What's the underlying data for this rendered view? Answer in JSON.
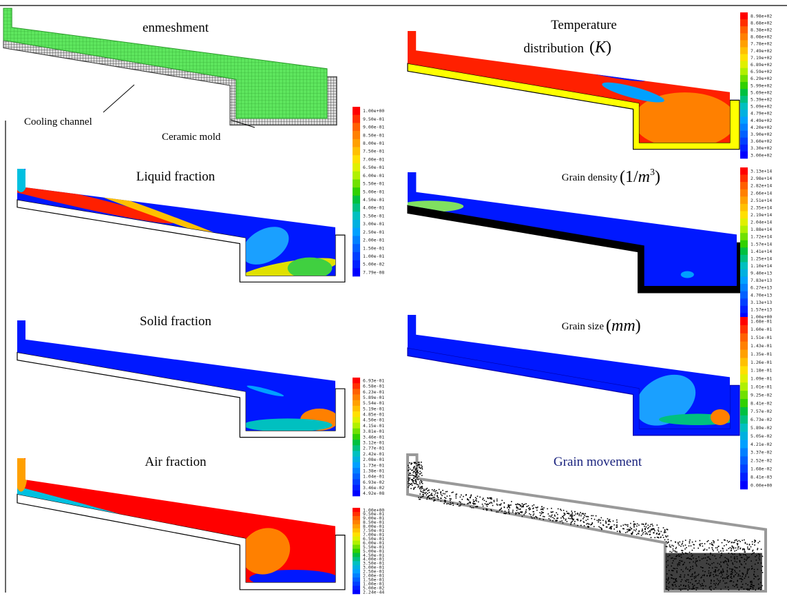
{
  "top": {
    "title": "enmeshment",
    "labels": [
      "Cooling channel",
      "Ceramic mold"
    ]
  },
  "panels": [
    {
      "title": "Liquid fraction",
      "colorbar": [
        "1.00e+00",
        "9.50e-01",
        "9.00e-01",
        "8.50e-01",
        "8.00e-01",
        "7.50e-01",
        "7.00e-01",
        "6.50e-01",
        "6.00e-01",
        "5.50e-01",
        "5.00e-01",
        "4.50e-01",
        "4.00e-01",
        "3.50e-01",
        "3.00e-01",
        "2.50e-01",
        "2.00e-01",
        "1.50e-01",
        "1.00e-01",
        "5.00e-02",
        "7.79e-08"
      ]
    },
    {
      "title": "Solid fraction",
      "colorbar": [
        "6.93e-01",
        "6.58e-01",
        "6.23e-01",
        "5.89e-01",
        "5.54e-01",
        "5.19e-01",
        "4.85e-01",
        "4.50e-01",
        "4.15e-01",
        "3.81e-01",
        "3.46e-01",
        "3.12e-01",
        "2.77e-01",
        "2.42e-01",
        "2.08e-01",
        "1.73e-01",
        "1.38e-01",
        "1.04e-01",
        "6.93e-02",
        "3.46e-02",
        "4.92e-08"
      ]
    },
    {
      "title": "Air fraction",
      "colorbar": [
        "1.00e+00",
        "9.50e-01",
        "9.00e-01",
        "8.50e-01",
        "8.00e-01",
        "7.50e-01",
        "7.00e-01",
        "6.50e-01",
        "6.00e-01",
        "5.50e-01",
        "5.00e-01",
        "4.50e-01",
        "4.00e-01",
        "3.50e-01",
        "3.00e-01",
        "2.50e-01",
        "2.00e-01",
        "1.50e-01",
        "1.00e-01",
        "5.00e-02",
        "2.24e-44"
      ]
    },
    {
      "title": [
        "Temperature",
        "distribution"
      ],
      "unit": [
        "(",
        "K",
        ")"
      ],
      "colorbar": [
        "8.98e+02",
        "8.68e+02",
        "8.38e+02",
        "8.08e+02",
        "7.78e+02",
        "7.49e+02",
        "7.19e+02",
        "6.89e+02",
        "6.59e+02",
        "6.29e+02",
        "5.99e+02",
        "5.69e+02",
        "5.39e+02",
        "5.09e+02",
        "4.79e+02",
        "4.49e+02",
        "4.20e+02",
        "3.90e+02",
        "3.60e+02",
        "3.30e+02",
        "3.00e+02"
      ]
    },
    {
      "title": "Grain density",
      "unit": [
        "(1/",
        "m",
        "3",
        ")"
      ],
      "colorbar": [
        "3.13e+14",
        "2.98e+14",
        "2.82e+14",
        "2.66e+14",
        "2.51e+14",
        "2.35e+14",
        "2.19e+14",
        "2.04e+14",
        "1.88e+14",
        "1.72e+14",
        "1.57e+14",
        "1.41e+14",
        "1.25e+14",
        "1.10e+14",
        "9.40e+13",
        "7.83e+13",
        "6.27e+13",
        "4.70e+13",
        "3.13e+13",
        "1.57e+13",
        "1.00e+00"
      ]
    },
    {
      "title": "Grain size",
      "unit": [
        "(",
        "mm",
        ")"
      ],
      "colorbar": [
        "1.68e-01",
        "1.60e-01",
        "1.51e-01",
        "1.43e-01",
        "1.35e-01",
        "1.26e-01",
        "1.18e-01",
        "1.09e-01",
        "1.01e-01",
        "9.25e-02",
        "8.41e-02",
        "7.57e-02",
        "6.73e-02",
        "5.89e-02",
        "5.05e-02",
        "4.21e-02",
        "3.37e-02",
        "2.52e-02",
        "1.68e-02",
        "8.41e-03",
        "0.00e+00"
      ]
    }
  ],
  "grain_movement": {
    "title": "Grain movement"
  }
}
